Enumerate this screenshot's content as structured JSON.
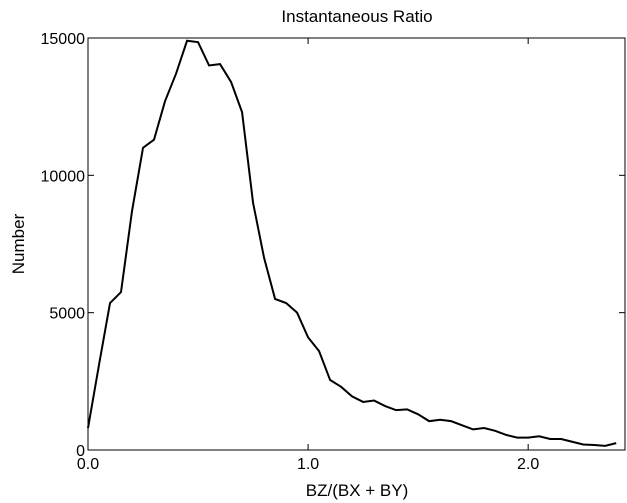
{
  "chart_data": {
    "type": "line",
    "title": "Instantaneous Ratio",
    "x_label": "BZ/(BX + BY)",
    "y_label": "Number",
    "x": [
      0.0,
      0.05,
      0.1,
      0.15,
      0.2,
      0.25,
      0.3,
      0.35,
      0.4,
      0.45,
      0.5,
      0.55,
      0.6,
      0.65,
      0.7,
      0.75,
      0.8,
      0.85,
      0.9,
      0.95,
      1.0,
      1.05,
      1.1,
      1.15,
      1.2,
      1.25,
      1.3,
      1.35,
      1.4,
      1.45,
      1.5,
      1.55,
      1.6,
      1.65,
      1.7,
      1.75,
      1.8,
      1.85,
      1.9,
      1.95,
      2.0,
      2.05,
      2.1,
      2.15,
      2.2,
      2.25,
      2.3,
      2.35,
      2.4
    ],
    "series": [
      {
        "color": "#000000",
        "values": [
          800,
          3100,
          5350,
          5750,
          8700,
          11000,
          11300,
          12700,
          13700,
          14900,
          14850,
          14000,
          14050,
          13400,
          12300,
          9000,
          7000,
          5500,
          5350,
          5000,
          4100,
          3600,
          2550,
          2300,
          1950,
          1750,
          1800,
          1600,
          1450,
          1480,
          1300,
          1050,
          1100,
          1050,
          900,
          750,
          800,
          700,
          550,
          450,
          450,
          500,
          400,
          400,
          300,
          200,
          180,
          150,
          250
        ]
      }
    ],
    "xlim": [
      0,
      2.44
    ],
    "ylim": [
      0,
      15000
    ],
    "xticks": [
      {
        "value": 0,
        "label": "0.0"
      },
      {
        "value": 1,
        "label": "1.0"
      },
      {
        "value": 2,
        "label": "2.0"
      }
    ],
    "yticks": [
      0,
      5000,
      10000,
      15000
    ]
  }
}
